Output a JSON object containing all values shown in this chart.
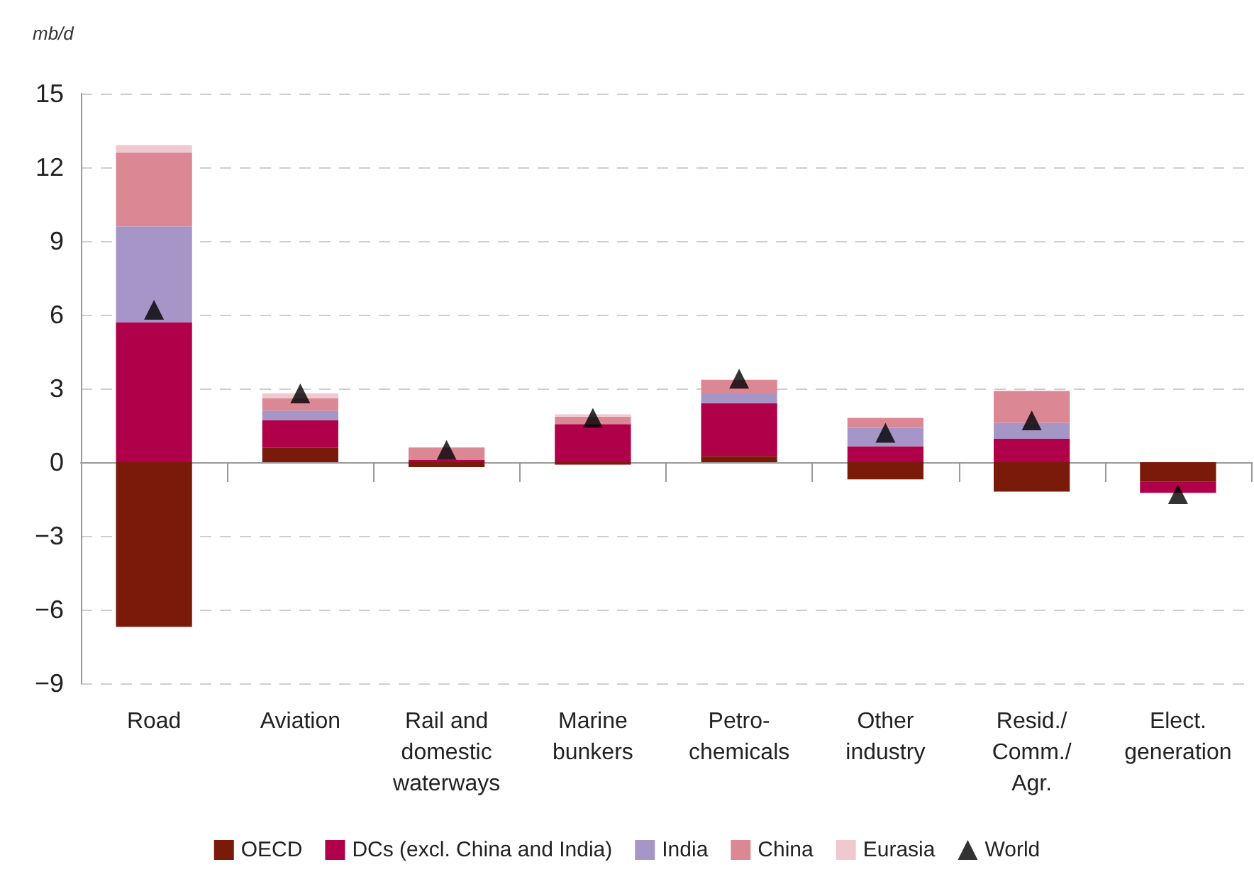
{
  "chart_data": {
    "type": "bar",
    "ylabel": "mb/d",
    "categories": [
      "Road",
      "Aviation",
      "Rail and\ndomestic\nwaterways",
      "Marine\nbunkers",
      "Petro-\nchemicals",
      "Other\nindustry",
      "Resid./\nComm./\nAgr.",
      "Elect.\ngeneration"
    ],
    "stacked": true,
    "series": [
      {
        "name": "OECD",
        "color": "#7a1a0a",
        "values": [
          -6.7,
          0.6,
          -0.2,
          -0.1,
          0.25,
          -0.7,
          -1.2,
          -0.8
        ]
      },
      {
        "name": "DCs (excl. China and India)",
        "color": "#b0004a",
        "values": [
          5.7,
          1.1,
          0.1,
          1.55,
          2.15,
          0.65,
          0.95,
          -0.45
        ]
      },
      {
        "name": "India",
        "color": "#a696c8",
        "values": [
          3.9,
          0.4,
          null,
          null,
          0.4,
          0.75,
          0.65,
          null
        ]
      },
      {
        "name": "China",
        "color": "#dc8894",
        "values": [
          3.0,
          0.5,
          0.5,
          0.3,
          0.55,
          0.4,
          1.3,
          null
        ]
      },
      {
        "name": "Eurasia",
        "color": "#f0c8d0",
        "values": [
          0.3,
          0.2,
          null,
          0.1,
          null,
          null,
          null,
          null
        ]
      },
      {
        "name": "World",
        "type": "scatter",
        "marker": "triangle",
        "color": "#000000",
        "x": [
          "Road",
          "Aviation",
          "Rail and\ndomestic\nwaterways",
          "Marine\nbunkers",
          "Petro-\nchemicals",
          "Other\nindustry",
          "Resid./\nComm./\nAgr.",
          "Elect.\ngeneration"
        ],
        "values": [
          6.2,
          2.8,
          0.5,
          1.8,
          3.4,
          1.2,
          1.7,
          -1.3
        ]
      }
    ],
    "ylim": [
      -9,
      15
    ],
    "yticks": [
      -9,
      -6,
      -3,
      0,
      3,
      6,
      9,
      12,
      15
    ],
    "grid": "y",
    "legend": "bottom"
  }
}
